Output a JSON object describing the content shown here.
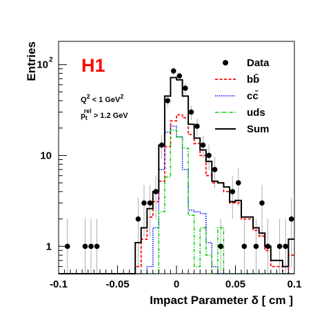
{
  "chart_data": {
    "type": "histogram",
    "xlabel": "Impact Parameter δ [ cm ]",
    "ylabel": "Entries",
    "xlim": [
      -0.1,
      0.1
    ],
    "ylim": [
      0.5,
      180
    ],
    "yscale": "log",
    "bin_width": 0.005,
    "bin_centers": [
      -0.0975,
      -0.0925,
      -0.0875,
      -0.0825,
      -0.0775,
      -0.0725,
      -0.0675,
      -0.0625,
      -0.0575,
      -0.0525,
      -0.0475,
      -0.0425,
      -0.0375,
      -0.0325,
      -0.0275,
      -0.0225,
      -0.0175,
      -0.0125,
      -0.0075,
      -0.0025,
      0.0025,
      0.0075,
      0.0125,
      0.0175,
      0.0225,
      0.0275,
      0.0325,
      0.0375,
      0.0425,
      0.0475,
      0.0525,
      0.0575,
      0.0625,
      0.0675,
      0.0725,
      0.0775,
      0.0825,
      0.0875,
      0.0925,
      0.0975
    ],
    "x_ticks": [
      {
        "value": -0.1,
        "label": "-0.1"
      },
      {
        "value": -0.05,
        "label": "-0.05"
      },
      {
        "value": 0,
        "label": "0"
      },
      {
        "value": 0.05,
        "label": "0.05"
      },
      {
        "value": 0.1,
        "label": "0.1"
      }
    ],
    "y_ticks": [
      {
        "value": 1,
        "label": "1"
      },
      {
        "value": 10,
        "label": "10"
      },
      {
        "value": 100,
        "label": "10",
        "exponent": "2"
      }
    ],
    "series": [
      {
        "name": "Data",
        "style": "points",
        "color": "#000000",
        "values": [
          0,
          1,
          0,
          0,
          1,
          1,
          1,
          0,
          0,
          0,
          0,
          0,
          0,
          2,
          3,
          3,
          4,
          13,
          40,
          85,
          75,
          55,
          30,
          21,
          13,
          10,
          7,
          1,
          0,
          4,
          5,
          1,
          0,
          1,
          3,
          1,
          0,
          1,
          1,
          2
        ]
      },
      {
        "name": "bb̄",
        "style": "dashed",
        "color": "#ff0000",
        "values": [
          0.5,
          0.5,
          0.5,
          0.5,
          0.5,
          0.5,
          0.5,
          0.5,
          0.5,
          0.5,
          0.5,
          0.5,
          0.5,
          0.6,
          1.2,
          2.1,
          3.1,
          5.2,
          12.5,
          24.0,
          28.0,
          26.0,
          17.0,
          13.5,
          10.0,
          6.0,
          5.0,
          5.0,
          4.0,
          3.0,
          3.0,
          2.0,
          2.0,
          1.5,
          1.3,
          0.9,
          0.6,
          0.6,
          0.5,
          0.8
        ]
      },
      {
        "name": "cc̄",
        "style": "dotted",
        "color": "#0000ff",
        "values": [
          0.5,
          0.5,
          0.5,
          0.5,
          0.5,
          0.5,
          0.5,
          0.5,
          0.5,
          0.5,
          0.5,
          0.5,
          0.5,
          0.5,
          0.5,
          0.6,
          1.6,
          7.0,
          18.0,
          21.0,
          16.0,
          7.0,
          2.5,
          2.4,
          2.3,
          1.1,
          0.6,
          0.5,
          0.5,
          0.5,
          0.5,
          0.5,
          0.5,
          0.5,
          0.5,
          0.5,
          0.5,
          0.5,
          0.5,
          0.5
        ]
      },
      {
        "name": "uds",
        "style": "dash-dot",
        "color": "#00cc00",
        "values": [
          0.5,
          0.5,
          0.5,
          0.5,
          0.5,
          0.5,
          0.5,
          0.5,
          0.5,
          0.5,
          0.5,
          0.5,
          0.5,
          0.5,
          0.5,
          0.5,
          0.5,
          2.4,
          5.8,
          19.0,
          16.0,
          12.0,
          2.2,
          0.6,
          1.6,
          0.8,
          0.5,
          1.6,
          0.5,
          0.5,
          0.5,
          0.5,
          0.5,
          0.5,
          0.5,
          0.5,
          0.5,
          0.5,
          0.5,
          0.5
        ]
      },
      {
        "name": "Sum",
        "style": "solid",
        "color": "#000000",
        "values": [
          0.5,
          0.5,
          0.5,
          0.5,
          0.5,
          0.5,
          0.5,
          0.5,
          0.5,
          0.5,
          0.5,
          0.5,
          0.5,
          1.1,
          1.6,
          2.6,
          4.0,
          13.0,
          45.0,
          72.0,
          68.0,
          45.0,
          22.0,
          15.5,
          11.5,
          8.6,
          5.2,
          5.0,
          4.5,
          3.1,
          3.2,
          2.1,
          2.1,
          1.6,
          1.4,
          1.0,
          0.7,
          0.7,
          0.6,
          1.2
        ]
      }
    ],
    "legend_position": "top-right",
    "annotations": {
      "logo": "H1",
      "cut_q2": {
        "base": "Q",
        "sup": "2",
        "rest": " < 1 GeV",
        "sup2": "2"
      },
      "cut_pt": {
        "base": "p",
        "sub": "t",
        "sup": "rel",
        "rest": " > 1.2 GeV"
      }
    }
  }
}
